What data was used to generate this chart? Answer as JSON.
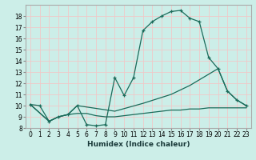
{
  "xlabel": "Humidex (Indice chaleur)",
  "bg_color": "#cceee8",
  "grid_color": "#f0c8c8",
  "line_color": "#1a6b5a",
  "xlim": [
    -0.5,
    23.5
  ],
  "ylim": [
    8,
    19
  ],
  "xticks": [
    0,
    1,
    2,
    3,
    4,
    5,
    6,
    7,
    8,
    9,
    10,
    11,
    12,
    13,
    14,
    15,
    16,
    17,
    18,
    19,
    20,
    21,
    22,
    23
  ],
  "yticks": [
    8,
    9,
    10,
    11,
    12,
    13,
    14,
    15,
    16,
    17,
    18
  ],
  "series_main": {
    "x": [
      0,
      1,
      2,
      3,
      4,
      5,
      6,
      7,
      8,
      9,
      10,
      11,
      12,
      13,
      14,
      15,
      16,
      17,
      18,
      19,
      20,
      21,
      22,
      23
    ],
    "y": [
      10.1,
      10.0,
      8.6,
      9.0,
      9.2,
      10.0,
      8.3,
      8.2,
      8.3,
      12.5,
      10.9,
      12.5,
      16.7,
      17.5,
      18.0,
      18.4,
      18.5,
      17.8,
      17.5,
      14.3,
      13.3,
      11.3,
      10.5,
      10.0
    ]
  },
  "series_diag": {
    "x": [
      0,
      2,
      3,
      4,
      5,
      9,
      12,
      15,
      17,
      19,
      20,
      21,
      22,
      23
    ],
    "y": [
      10.1,
      8.6,
      9.0,
      9.2,
      10.0,
      9.5,
      10.2,
      11.0,
      11.8,
      12.8,
      13.3,
      11.3,
      10.5,
      10.0
    ]
  },
  "series_flat": {
    "x": [
      0,
      2,
      3,
      4,
      5,
      6,
      7,
      8,
      9,
      10,
      11,
      12,
      13,
      14,
      15,
      16,
      17,
      18,
      19,
      20,
      21,
      22,
      23
    ],
    "y": [
      10.1,
      8.6,
      9.0,
      9.2,
      9.3,
      9.3,
      9.1,
      9.0,
      9.0,
      9.1,
      9.2,
      9.3,
      9.4,
      9.5,
      9.6,
      9.6,
      9.7,
      9.7,
      9.8,
      9.8,
      9.8,
      9.8,
      9.8
    ]
  }
}
